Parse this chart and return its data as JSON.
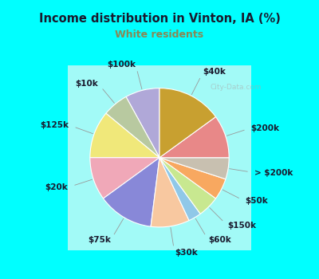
{
  "title": "Income distribution in Vinton, IA (%)",
  "subtitle": "White residents",
  "title_color": "#1a1a2e",
  "subtitle_color": "#888855",
  "background_outer": "#00ffff",
  "background_inner_top": "#e8f5f0",
  "background_inner_bottom": "#d0ece8",
  "labels": [
    "$100k",
    "$10k",
    "$125k",
    "$20k",
    "$75k",
    "$30k",
    "$60k",
    "$150k",
    "$50k",
    "> $200k",
    "$200k",
    "$40k"
  ],
  "values": [
    8,
    6,
    11,
    10,
    13,
    9,
    3,
    5,
    5,
    5,
    10,
    15
  ],
  "colors": [
    "#b0a8d8",
    "#b8c9a0",
    "#f0e87a",
    "#f0a8b8",
    "#8888d8",
    "#f8c8a0",
    "#90c8e8",
    "#c8e890",
    "#f8a860",
    "#c8c0b0",
    "#e88888",
    "#c8a030"
  ],
  "label_fontsize": 7.5,
  "wedge_linewidth": 0.8,
  "wedge_linecolor": "#ffffff",
  "label_color": "#1a1a2e"
}
